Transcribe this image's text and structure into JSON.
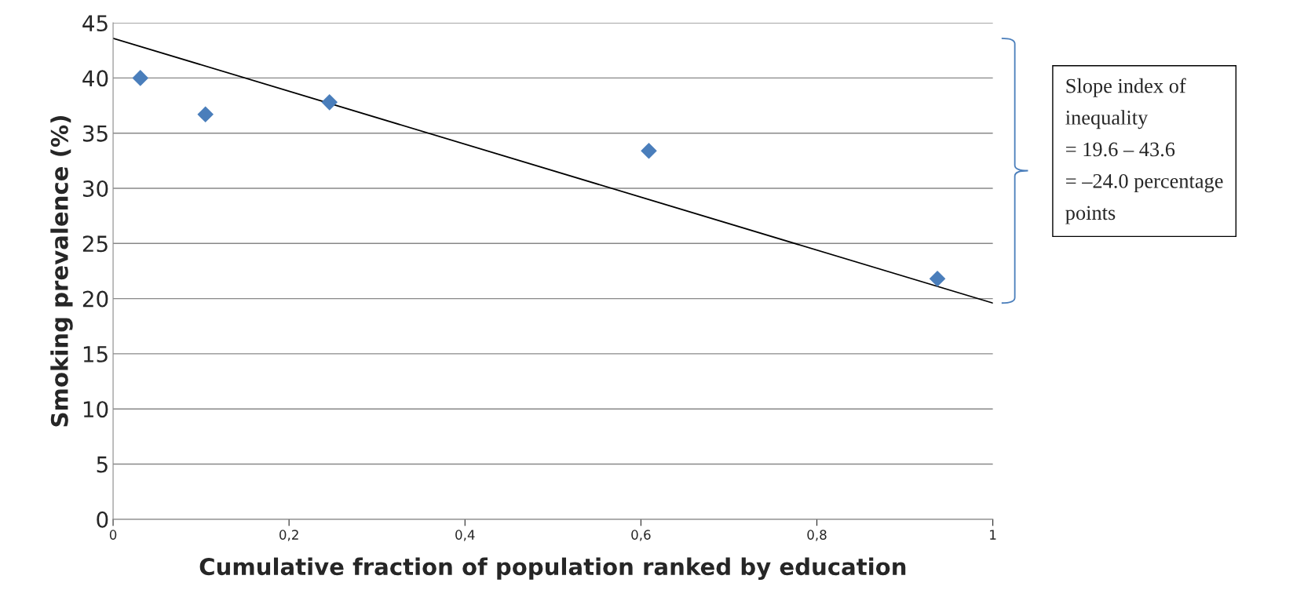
{
  "chart_data": {
    "type": "scatter",
    "xlabel": "Cumulative fraction of population ranked by education",
    "ylabel": "Smoking prevalence (%)",
    "series": [
      {
        "color": "#4a7ebb",
        "marker": "diamond",
        "x": [
          0.031,
          0.105,
          0.246,
          0.609,
          0.937
        ],
        "values": [
          40.0,
          36.7,
          37.8,
          33.4,
          21.8
        ]
      },
      {
        "type": "line",
        "color": "#000000",
        "marker": "none",
        "line_style": "solid",
        "x": [
          0,
          1
        ],
        "values": [
          43.6,
          19.6
        ]
      }
    ],
    "xlim": [
      0,
      1
    ],
    "xticks": [
      0,
      {
        "value": 0.2,
        "label": "0,2"
      },
      {
        "value": 0.4,
        "label": "0,4"
      },
      {
        "value": 0.6,
        "label": "0,6"
      },
      {
        "value": 0.8,
        "label": "0,8"
      },
      1
    ],
    "ylim": [
      0,
      45
    ],
    "yticks": [
      0,
      5,
      10,
      15,
      20,
      25,
      30,
      35,
      40,
      45
    ],
    "grid": "y",
    "legend": false,
    "annotations": [
      "Slope index of\ninequality\n= 19.6 – 43.6\n= –24.0 percentage\npoints"
    ]
  }
}
